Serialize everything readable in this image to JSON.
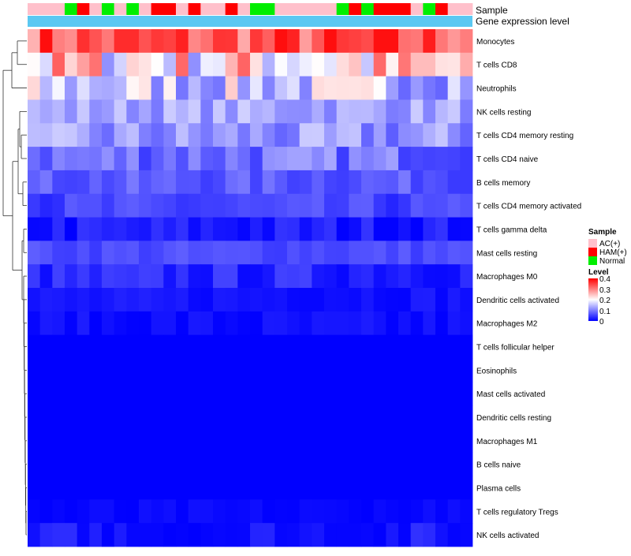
{
  "chart_data": {
    "type": "heatmap",
    "annotation_labels": [
      "Sample",
      "Gene expression level"
    ],
    "sample_groups": [
      "AC(+)",
      "AC(+)",
      "AC(+)",
      "Normal",
      "HAM(+)",
      "AC(+)",
      "Normal",
      "AC(+)",
      "Normal",
      "AC(+)",
      "HAM(+)",
      "HAM(+)",
      "AC(+)",
      "HAM(+)",
      "AC(+)",
      "AC(+)",
      "HAM(+)",
      "AC(+)",
      "Normal",
      "Normal",
      "AC(+)",
      "AC(+)",
      "AC(+)",
      "AC(+)",
      "AC(+)",
      "Normal",
      "HAM(+)",
      "Normal",
      "HAM(+)",
      "HAM(+)",
      "HAM(+)",
      "AC(+)",
      "Normal",
      "HAM(+)",
      "AC(+)",
      "AC(+)"
    ],
    "group_colors": {
      "AC(+)": "#ffc0cb",
      "HAM(+)": "#ff0000",
      "Normal": "#00ee00"
    },
    "expression_bar_color": "#5bc8f2",
    "rows": [
      "Monocytes",
      "T cells CD8",
      "Neutrophils",
      "NK cells resting",
      "T cells CD4 memory resting",
      "T cells CD4 naive",
      "B cells memory",
      "T cells CD4 memory activated",
      "T cells gamma delta",
      "Mast cells resting",
      "Macrophages M0",
      "Dendritic cells activated",
      "Macrophages M2",
      "T cells follicular helper",
      "Eosinophils",
      "Mast cells activated",
      "Dendritic cells resting",
      "Macrophages M1",
      "B cells naive",
      "Plasma cells",
      "T cells regulatory  Tregs",
      "NK cells activated"
    ],
    "row_base": [
      0.33,
      0.22,
      0.16,
      0.13,
      0.11,
      0.09,
      0.07,
      0.05,
      0.02,
      0.06,
      0.03,
      0.015,
      0.008,
      0.0,
      0.0,
      0.0,
      0.0,
      0.0,
      0.0,
      0.0,
      0.003,
      0.01
    ],
    "row_spread": [
      0.07,
      0.12,
      0.08,
      0.035,
      0.05,
      0.045,
      0.025,
      0.025,
      0.025,
      0.015,
      0.025,
      0.012,
      0.015,
      0.0,
      0.0,
      0.0,
      0.0,
      0.0,
      0.0,
      0.0,
      0.01,
      0.03
    ],
    "color_scale": {
      "min": 0,
      "mid": 0.2,
      "max": 0.4,
      "low": "#0000ff",
      "mid_color": "#ffffff",
      "high": "#ff0000"
    },
    "legend": {
      "sample_title": "Sample",
      "sample_items": [
        "AC(+)",
        "HAM(+)",
        "Normal"
      ],
      "level_title": "Level",
      "level_ticks": [
        "0.4",
        "0.3",
        "0.2",
        "0.1",
        "0"
      ]
    }
  }
}
